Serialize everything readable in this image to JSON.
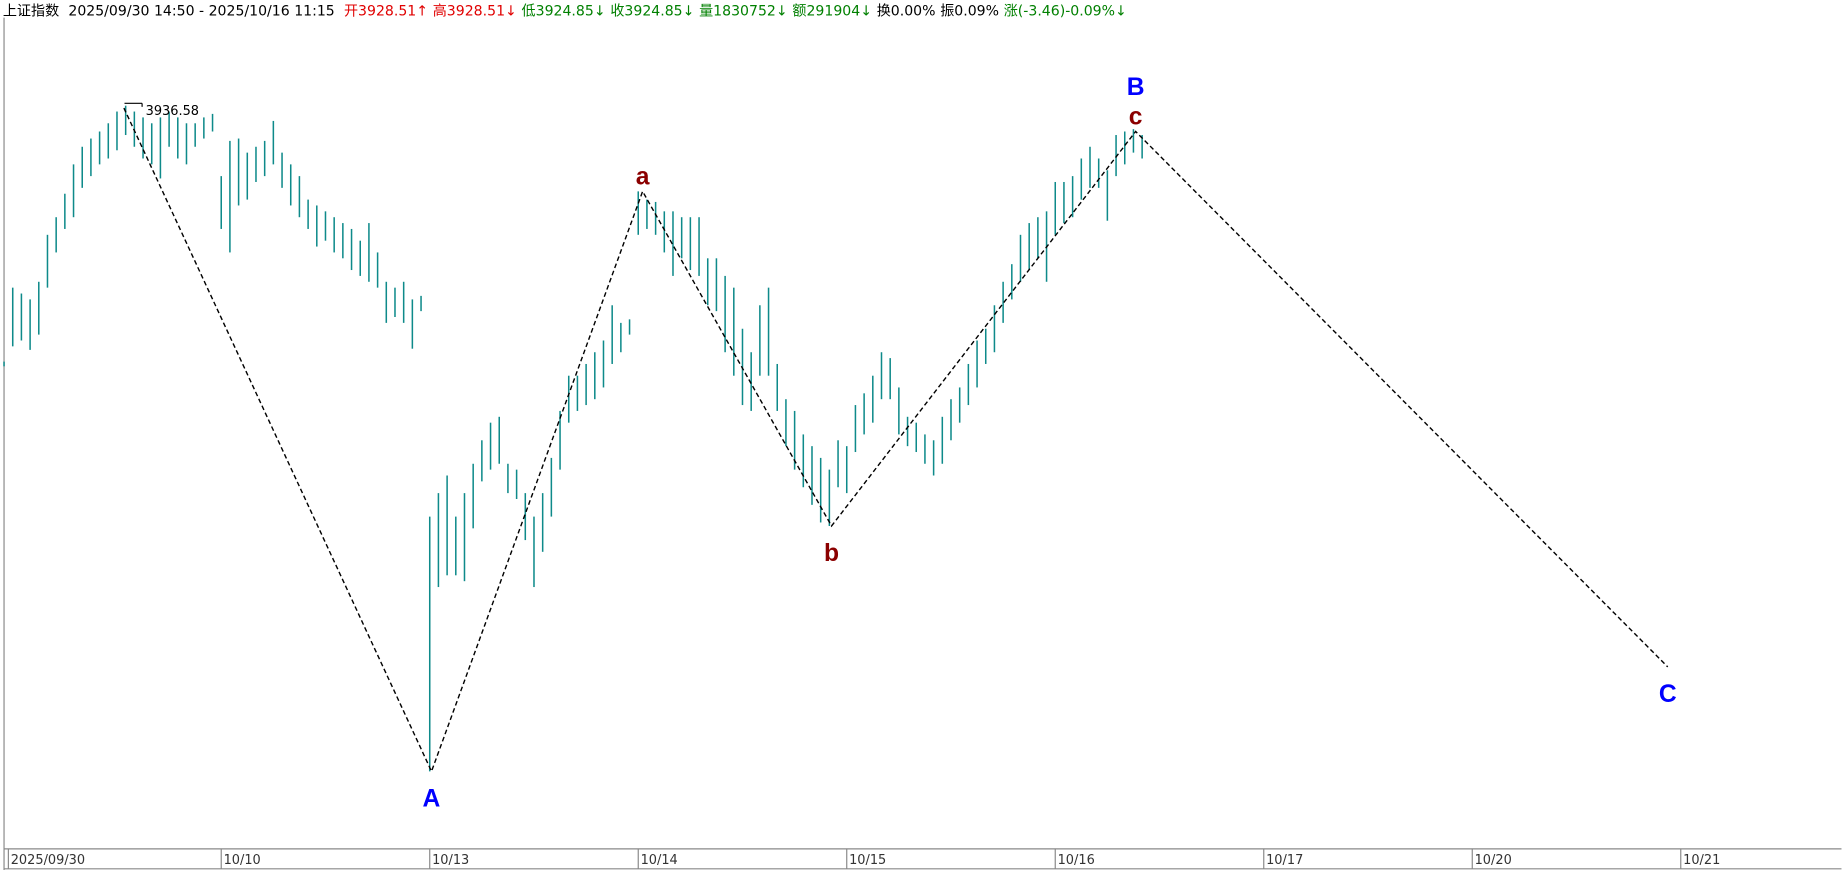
{
  "header": {
    "title": "上证指数",
    "range": "2025/09/30 14:50 - 2025/10/16 11:15",
    "items": [
      {
        "text": "开3928.51↑",
        "color": "#e00000"
      },
      {
        "text": "高3928.51↓",
        "color": "#e00000"
      },
      {
        "text": "低3924.85↓",
        "color": "#008000"
      },
      {
        "text": "收3924.85↓",
        "color": "#008000"
      },
      {
        "text": "量1830752↓",
        "color": "#008000"
      },
      {
        "text": "额291904↓",
        "color": "#008000"
      },
      {
        "text": "换0.00%",
        "color": "#000000"
      },
      {
        "text": "振0.09%",
        "color": "#000000"
      },
      {
        "text": "涨(-3.46)-0.09%↓",
        "color": "#008000"
      }
    ]
  },
  "chart_data": {
    "type": "range",
    "color": "#0e8a8a",
    "x": [
      0,
      2,
      4,
      6,
      8,
      10,
      12,
      14,
      16,
      18,
      20,
      22,
      24,
      26,
      28,
      30,
      32,
      34,
      36,
      38,
      40,
      42,
      44,
      46,
      48,
      50,
      52,
      54,
      56,
      58,
      60,
      62,
      64,
      66,
      68,
      70,
      72,
      74,
      76,
      78,
      80,
      82,
      84,
      86,
      88,
      90,
      92,
      94,
      96,
      98,
      100,
      102,
      104,
      106,
      108,
      110,
      112,
      114,
      116,
      118,
      120,
      122,
      124,
      126,
      128,
      130,
      132,
      134,
      136,
      138,
      140,
      142,
      144,
      146,
      148,
      150,
      152,
      154,
      156,
      158,
      160,
      162,
      164,
      166,
      168,
      170,
      172,
      174,
      176,
      178,
      180,
      182,
      184,
      186,
      188,
      190,
      192,
      194,
      196,
      198,
      200,
      202,
      204,
      206,
      208,
      210,
      212,
      214,
      216,
      218,
      220,
      222,
      224,
      226,
      228,
      230,
      232,
      234,
      236,
      238,
      240,
      242,
      244,
      246,
      248,
      250,
      252,
      254,
      256,
      258,
      260,
      262
    ],
    "high": [
      3914.78,
      3921.08,
      3920.58,
      3920.08,
      3921.58,
      3925.58,
      3927.08,
      3929.08,
      3931.58,
      3933.08,
      3933.78,
      3934.38,
      3935.08,
      3936.08,
      3936.58,
      3936.08,
      3935.58,
      3935.08,
      3935.58,
      3936.08,
      3935.58,
      3935.08,
      3935.08,
      3935.58,
      3935.88,
      3930.58,
      3933.58,
      3933.78,
      3932.58,
      3933.08,
      3933.58,
      3935.28,
      3932.58,
      3931.58,
      3930.58,
      3928.58,
      3928.08,
      3927.58,
      3927.08,
      3926.58,
      3926.08,
      3925.08,
      3926.58,
      3924.08,
      3921.58,
      3921.08,
      3921.58,
      3920.08,
      3920.38,
      3901.58,
      3903.58,
      3905.08,
      3901.58,
      3903.58,
      3906.08,
      3908.08,
      3909.58,
      3910.08,
      3906.08,
      3905.58,
      3903.58,
      3901.58,
      3903.58,
      3906.58,
      3910.58,
      3913.58,
      3913.58,
      3914.58,
      3915.58,
      3916.58,
      3919.58,
      3918.08,
      3918.38,
      3929.28,
      3928.58,
      3928.38,
      3927.58,
      3927.58,
      3927.08,
      3927.08,
      3927.08,
      3923.58,
      3923.58,
      3922.08,
      3921.08,
      3917.58,
      3915.58,
      3919.58,
      3921.08,
      3914.58,
      3911.58,
      3910.58,
      3908.58,
      3907.58,
      3906.58,
      3905.58,
      3908.08,
      3907.58,
      3911.08,
      3912.08,
      3913.58,
      3915.58,
      3915.08,
      3912.58,
      3910.08,
      3909.58,
      3908.58,
      3908.08,
      3910.08,
      3911.58,
      3912.58,
      3914.58,
      3916.58,
      3917.58,
      3919.58,
      3921.58,
      3923.08,
      3925.58,
      3926.58,
      3927.08,
      3927.58,
      3930.08,
      3930.08,
      3930.58,
      3932.08,
      3933.08,
      3932.08,
      3931.08,
      3934.08,
      3934.38,
      3934.58,
      3934.08
    ],
    "low": [
      3914.38,
      3916.08,
      3916.58,
      3915.78,
      3917.08,
      3921.08,
      3924.08,
      3926.08,
      3927.08,
      3929.58,
      3930.58,
      3931.58,
      3932.08,
      3932.78,
      3934.08,
      3933.08,
      3932.08,
      3931.58,
      3930.38,
      3933.08,
      3932.08,
      3931.58,
      3933.08,
      3933.78,
      3934.38,
      3926.08,
      3924.08,
      3928.08,
      3928.58,
      3930.08,
      3930.58,
      3931.58,
      3929.58,
      3928.08,
      3927.08,
      3926.08,
      3924.58,
      3925.08,
      3924.08,
      3923.58,
      3922.58,
      3922.08,
      3921.58,
      3921.08,
      3918.08,
      3918.58,
      3918.08,
      3915.88,
      3919.08,
      3879.88,
      3895.58,
      3896.58,
      3896.58,
      3896.08,
      3900.58,
      3904.58,
      3905.58,
      3906.08,
      3903.58,
      3903.08,
      3899.58,
      3895.58,
      3898.58,
      3901.58,
      3905.58,
      3909.58,
      3910.58,
      3911.08,
      3911.58,
      3912.58,
      3914.58,
      3915.58,
      3917.08,
      3925.58,
      3926.08,
      3925.58,
      3924.08,
      3922.08,
      3923.58,
      3922.58,
      3922.08,
      3919.58,
      3919.08,
      3915.58,
      3913.58,
      3911.08,
      3910.58,
      3913.58,
      3913.58,
      3910.58,
      3907.58,
      3905.58,
      3904.08,
      3902.58,
      3901.08,
      3900.78,
      3904.08,
      3903.58,
      3907.08,
      3908.58,
      3909.58,
      3911.58,
      3911.58,
      3908.58,
      3907.58,
      3907.08,
      3906.08,
      3905.08,
      3906.08,
      3908.08,
      3909.58,
      3911.08,
      3912.58,
      3914.58,
      3915.58,
      3918.08,
      3920.08,
      3921.58,
      3922.58,
      3923.58,
      3921.58,
      3925.58,
      3926.58,
      3927.08,
      3928.58,
      3929.58,
      3929.58,
      3926.78,
      3930.58,
      3931.58,
      3932.58,
      3932.08
    ],
    "xlim": [
      0,
      423
    ],
    "ylim": [
      3873.28,
      3944.08
    ],
    "xticks": [
      {
        "value": 1,
        "label": "2025/09/30"
      },
      {
        "value": 50,
        "label": "10/10"
      },
      {
        "value": 98,
        "label": "10/13"
      },
      {
        "value": 146,
        "label": "10/14"
      },
      {
        "value": 194,
        "label": "10/15"
      },
      {
        "value": 242,
        "label": "10/16"
      },
      {
        "value": 290,
        "label": "10/17"
      },
      {
        "value": 338,
        "label": "10/20"
      },
      {
        "value": 386,
        "label": "10/21"
      }
    ],
    "wave": {
      "color": "#000000",
      "x": [
        27.6,
        98.4,
        147,
        190.5,
        260.5,
        383
      ],
      "y": [
        3936.38,
        3879.88,
        3929.28,
        3900.78,
        3934.38,
        3888.78
      ]
    },
    "wave_labels": [
      {
        "text": "A",
        "point": 1,
        "color": "#0000ff",
        "position": "below"
      },
      {
        "text": "a",
        "point": 2,
        "color": "#8b0000",
        "position": "above"
      },
      {
        "text": "b",
        "point": 3,
        "color": "#8b0000",
        "position": "below"
      },
      {
        "text": "c",
        "point": 4,
        "color": "#8b0000",
        "position": "above"
      },
      {
        "text": "B",
        "point": 4,
        "color": "#0000ff",
        "position": "top"
      },
      {
        "text": "C",
        "point": 5,
        "color": "#0000ff",
        "position": "below"
      }
    ]
  }
}
